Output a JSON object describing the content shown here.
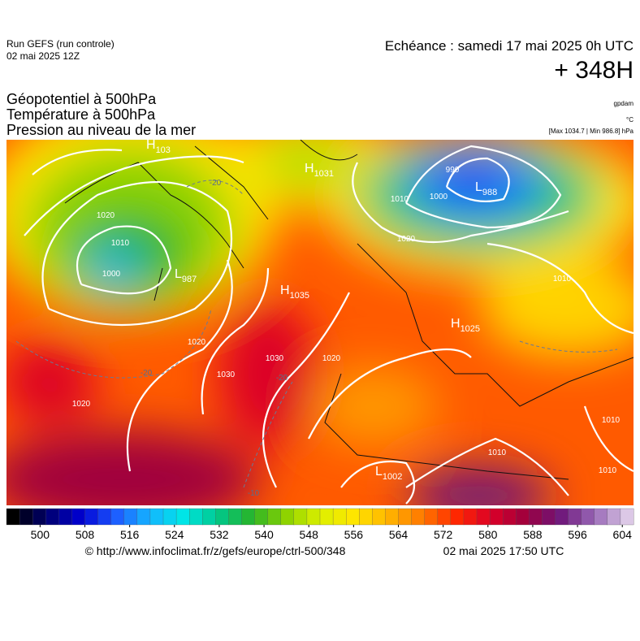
{
  "header": {
    "run": "Run GEFS (run controle)",
    "run_date": "02 mai 2025 12Z",
    "valid": "Echéance : samedi 17 mai 2025 0h UTC",
    "lead": "+ 348H",
    "fields": [
      "Géopotentiel à 500hPa",
      "Température à 500hPa",
      "Pression au niveau de la mer"
    ],
    "units": [
      "gpdam",
      "°C",
      "[Max 1034.7 | Min 986.8] hPa"
    ]
  },
  "map": {
    "centers": [
      {
        "letter": "H",
        "value": "103"
      },
      {
        "letter": "H",
        "value": "1031"
      },
      {
        "letter": "L",
        "value": "988"
      },
      {
        "letter": "L",
        "value": "987"
      },
      {
        "letter": "H",
        "value": "1035"
      },
      {
        "letter": "H",
        "value": "1025"
      },
      {
        "letter": "L",
        "value": "1002"
      }
    ],
    "isobar_labels": [
      1020,
      1010,
      1000,
      1020,
      1030,
      1030,
      1020,
      1020,
      1010,
      1000,
      990,
      1020,
      1010,
      1010,
      1010,
      1010
    ],
    "isotherm_labels": [
      -20,
      -20,
      -10,
      -20
    ]
  },
  "colorbar": {
    "range": [
      494,
      606
    ],
    "ticks": [
      500,
      508,
      516,
      524,
      532,
      540,
      548,
      556,
      564,
      572,
      580,
      588,
      596,
      604
    ],
    "colors": [
      "#000000",
      "#00006e",
      "#0000d2",
      "#1e5aff",
      "#14b4ff",
      "#00e6e6",
      "#00c88c",
      "#28b428",
      "#8cd200",
      "#dcf000",
      "#ffe600",
      "#ffb400",
      "#ff7800",
      "#ff2800",
      "#dc0028",
      "#a0003c",
      "#6e1478",
      "#9664b4",
      "#dcc8e6"
    ]
  },
  "footer": {
    "source": "© http://www.infoclimat.fr/z/gefs/europe/ctrl-500/348",
    "generated": "02 mai 2025 17:50 UTC"
  }
}
